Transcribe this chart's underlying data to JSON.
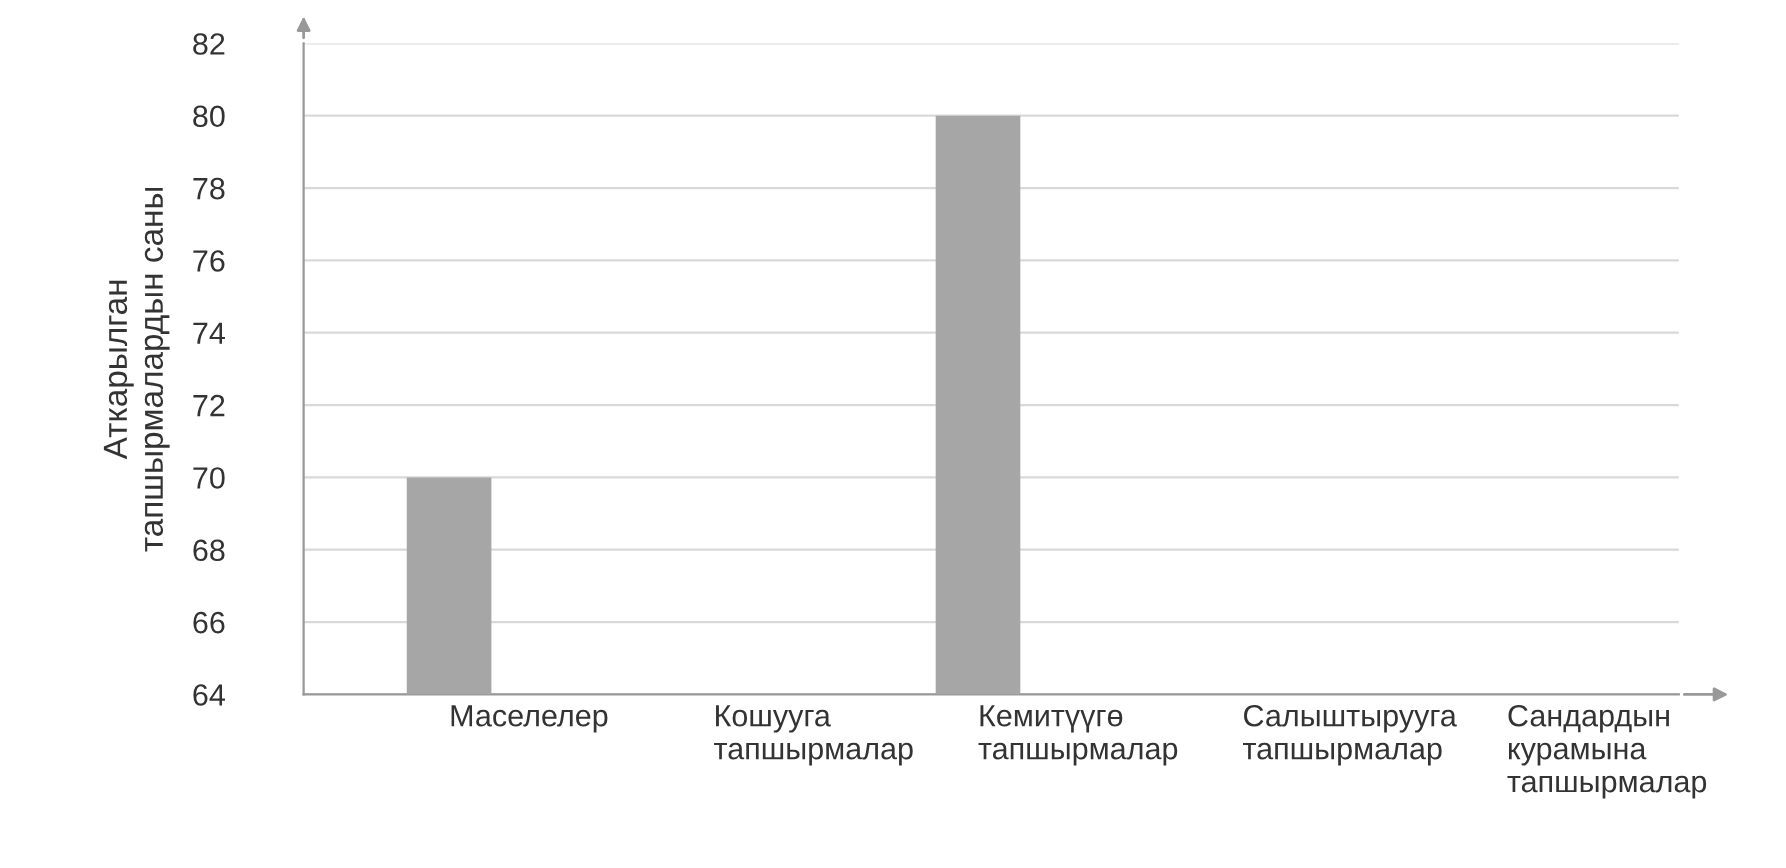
{
  "chart_data": {
    "type": "bar",
    "ylabel": "Аткарылган\nтапшырмалардын саны",
    "categories": [
      "Маселелер",
      "Кошууга\nтапшырмалар",
      "Кемитүүгө\nтапшырмалар",
      "Салыштырууга\nтапшырмалар",
      "Сандардын\nкурамына\nтапшырмалар"
    ],
    "values": [
      70,
      null,
      80,
      null,
      null
    ],
    "color": "#a6a6a6",
    "ylim": [
      64,
      82
    ],
    "yticks": [
      64,
      66,
      68,
      70,
      72,
      74,
      76,
      78,
      80,
      82
    ],
    "grid": "y",
    "legend": false
  }
}
